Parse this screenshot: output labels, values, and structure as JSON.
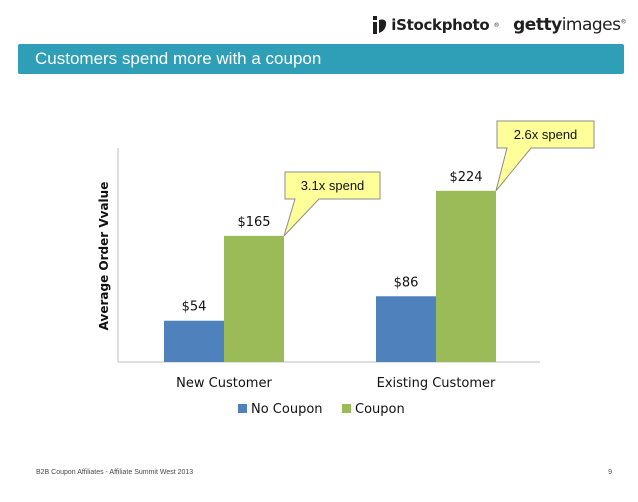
{
  "header": {
    "logo_istock": "iStockphoto",
    "logo_getty_bold": "getty",
    "logo_getty_light": "images",
    "registered": "®"
  },
  "title": "Customers spend more with a coupon",
  "footer": {
    "left": "B2B Coupon Affiliates - Affiliate Summit West 2013",
    "page": "9"
  },
  "colors": {
    "title_bar": "#2e9fb6",
    "no_coupon": "#4f81bd",
    "coupon": "#9bbb59",
    "callout": "#ffff99"
  },
  "chart_data": {
    "type": "bar",
    "categories": [
      "New Customer",
      "Existing Customer"
    ],
    "series": [
      {
        "name": "No Coupon",
        "values": [
          54,
          86
        ],
        "labels": [
          "$54",
          "$86"
        ]
      },
      {
        "name": "Coupon",
        "values": [
          165,
          224
        ],
        "labels": [
          "$165",
          "$224"
        ]
      }
    ],
    "ylabel": "Average Order Vvalue",
    "ylim": [
      0,
      280
    ],
    "grid": false,
    "legend": "bottom",
    "annotations": [
      "3.1x spend",
      "2.6x spend"
    ]
  }
}
